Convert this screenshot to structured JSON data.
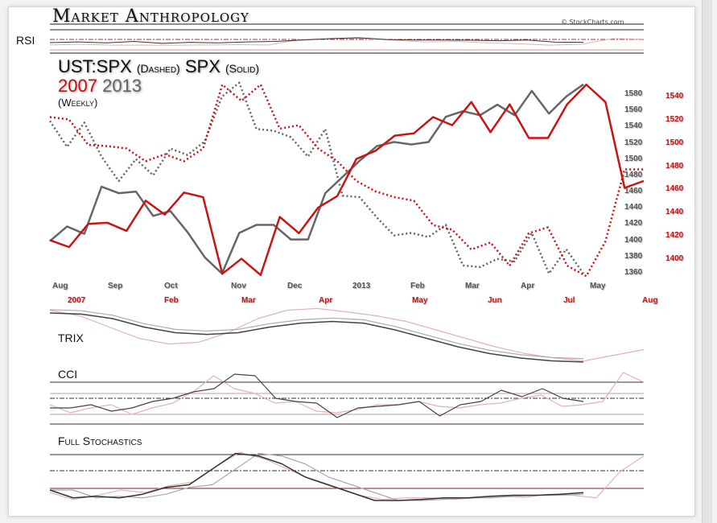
{
  "header": {
    "brand": "Market Anthropology",
    "credit": "© StockCharts.com"
  },
  "panels": {
    "rsi": "RSI",
    "trix": "TRIX",
    "cci": "CCI",
    "stoch": "Full Stochastics"
  },
  "title": {
    "line1_a": "UST:SPX",
    "line1_b": "(Dashed)",
    "line1_c": "SPX",
    "line1_d": "(Solid)",
    "year_red": "2007",
    "year_gray": "2013",
    "period": "(Weekly)"
  },
  "colors": {
    "red": "#c81414",
    "gray": "#555555",
    "light_red": "#e3b3b3",
    "light_gray": "#aaaaaa"
  },
  "chart_data": {
    "type": "line",
    "x_ticks_2013": [
      "Aug",
      "Sep",
      "Oct",
      "Nov",
      "Dec",
      "2013",
      "Feb",
      "Mar",
      "Apr",
      "May"
    ],
    "x_ticks_2007": [
      "2007",
      "Feb",
      "Mar",
      "Apr",
      "May",
      "Jun",
      "Jul",
      "Aug"
    ],
    "y_ticks_left_gray": [
      1580,
      1560,
      1540,
      1520,
      1500,
      1480,
      1460,
      1440,
      1420,
      1400,
      1380,
      1360
    ],
    "y_ticks_right_red": [
      1540,
      1520,
      1500,
      1480,
      1460,
      1440,
      1420,
      1400
    ],
    "ylim_gray": [
      1360,
      1580
    ],
    "ylim_red": [
      1400,
      1540
    ],
    "series": [
      {
        "name": "SPX 2013",
        "style": "solid",
        "color": "gray",
        "values": [
          1400,
          1418,
          1409,
          1467,
          1459,
          1461,
          1431,
          1437,
          1411,
          1380,
          1360,
          1410,
          1420,
          1420,
          1402,
          1402,
          1459,
          1479,
          1499,
          1517,
          1522,
          1519,
          1522,
          1553,
          1560,
          1555,
          1568,
          1555,
          1585,
          1557,
          1578,
          1593
        ]
      },
      {
        "name": "SPX 2007",
        "style": "solid",
        "color": "red",
        "values": [
          1417,
          1411,
          1431,
          1432,
          1425,
          1451,
          1439,
          1458,
          1454,
          1388,
          1401,
          1387,
          1437,
          1423,
          1445,
          1455,
          1487,
          1494,
          1507,
          1509,
          1523,
          1516,
          1536,
          1510,
          1534,
          1505,
          1505,
          1534,
          1551,
          1536,
          1462,
          1468
        ]
      },
      {
        "name": "UST:SPX 2013",
        "style": "dashed",
        "color": "gray",
        "values": [
          1548,
          1516,
          1546,
          1504,
          1474,
          1501,
          1481,
          1514,
          1506,
          1523,
          1578,
          1595,
          1538,
          1536,
          1528,
          1504,
          1538,
          1456,
          1454,
          1429,
          1407,
          1410,
          1405,
          1420,
          1370,
          1368,
          1378,
          1375,
          1410,
          1360,
          1390,
          1360
        ]
      },
      {
        "name": "UST:SPX 2007",
        "style": "dashed",
        "color": "red",
        "values": [
          1523,
          1521,
          1499,
          1498,
          1496,
          1485,
          1491,
          1485,
          1496,
          1551,
          1537,
          1551,
          1513,
          1516,
          1496,
          1485,
          1468,
          1459,
          1454,
          1451,
          1430,
          1426,
          1409,
          1415,
          1395,
          1423,
          1428,
          1395,
          1386,
          1416,
          1478,
          1478
        ]
      }
    ],
    "indicators": {
      "rsi": {
        "gray": [
          45,
          48,
          44,
          50,
          42,
          46,
          44,
          48,
          50,
          56,
          62,
          66,
          58,
          56,
          56,
          55,
          53,
          56,
          47,
          46
        ],
        "red": [
          35,
          38,
          34,
          34,
          34,
          35,
          36,
          35,
          58,
          62,
          62,
          55,
          48,
          50,
          44,
          40,
          34,
          38,
          62,
          60
        ]
      },
      "trix": {
        "gray": [
          90,
          88,
          80,
          65,
          55,
          52,
          55,
          65,
          72,
          75,
          72,
          60,
          45,
          30,
          18,
          10,
          5,
          3
        ],
        "red": [
          95,
          85,
          65,
          45,
          35,
          38,
          55,
          80,
          95,
          98,
          92,
          85,
          75,
          60,
          45,
          30,
          18,
          10,
          5,
          15,
          25
        ]
      },
      "cci": {
        "gray": [
          -60,
          -60,
          -40,
          -80,
          -60,
          -20,
          0,
          40,
          60,
          150,
          140,
          0,
          -20,
          -30,
          -120,
          -60,
          -50,
          -40,
          -20,
          -110,
          -40,
          -20,
          50,
          10,
          60,
          0,
          -20
        ],
        "red": [
          -40,
          -90,
          -60,
          -40,
          -100,
          -60,
          -30,
          40,
          140,
          60,
          30,
          -30,
          -20,
          -80,
          -90,
          -70,
          -40,
          -40,
          -20,
          -50,
          -60,
          -40,
          -30,
          0,
          20,
          -50,
          -40,
          -20,
          160,
          100
        ]
      },
      "stoch": {
        "gray": [
          20,
          5,
          8,
          5,
          12,
          25,
          30,
          60,
          90,
          85,
          70,
          45,
          30,
          15,
          0,
          0,
          2,
          5,
          5,
          8,
          10,
          10,
          12,
          15
        ],
        "red": [
          15,
          2,
          10,
          20,
          15,
          28,
          35,
          65,
          92,
          80,
          60,
          40,
          25,
          10,
          2,
          5,
          5,
          2,
          5,
          8,
          6,
          12,
          10,
          5,
          55,
          85
        ]
      }
    }
  }
}
